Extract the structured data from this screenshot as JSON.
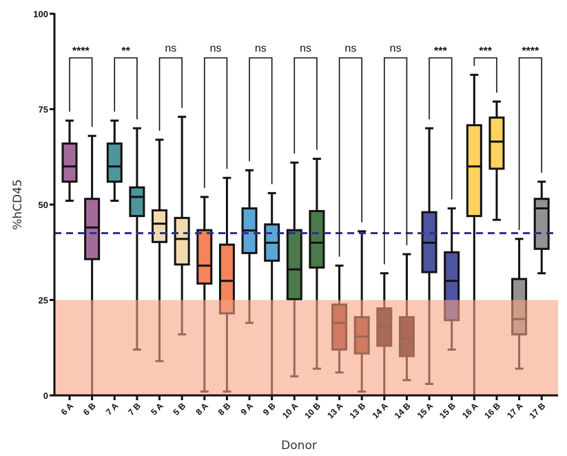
{
  "chart_data": {
    "type": "box",
    "xlabel": "Donor",
    "ylabel": "%hCD45",
    "ylim": [
      0,
      100
    ],
    "yticks": [
      0,
      25,
      50,
      75,
      100
    ],
    "reference_line": {
      "y": 42.5,
      "style": "dashed",
      "color": "#2e3192"
    },
    "shaded_region": {
      "y_from": 0,
      "y_to": 25,
      "color": "#f7a483"
    },
    "categories": [
      "6 A",
      "6 B",
      "7 A",
      "7 B",
      "5 A",
      "5 B",
      "8 A",
      "8 B",
      "9 A",
      "9 B",
      "10 A",
      "10 B",
      "13 A",
      "13 B",
      "14 A",
      "14 B",
      "15 A",
      "15 B",
      "16 A",
      "16 B",
      "17 A",
      "17 B"
    ],
    "boxes": [
      {
        "min": 51,
        "q1": 56,
        "median": 60,
        "q3": 66,
        "max": 72,
        "color": "#a46b9a"
      },
      {
        "min": 0,
        "q1": 35.7,
        "median": 44,
        "q3": 51.5,
        "max": 68,
        "color": "#a46b9a"
      },
      {
        "min": 51,
        "q1": 56,
        "median": 60,
        "q3": 66,
        "max": 72,
        "color": "#4e959e"
      },
      {
        "min": 12,
        "q1": 47,
        "median": 52,
        "q3": 54.5,
        "max": 70,
        "color": "#4e959e"
      },
      {
        "min": 9,
        "q1": 40.2,
        "median": 45,
        "q3": 48.5,
        "max": 67,
        "color": "#f2dab0"
      },
      {
        "min": 16,
        "q1": 34.3,
        "median": 41,
        "q3": 46.5,
        "max": 73,
        "color": "#f2dab0"
      },
      {
        "min": 1,
        "q1": 29.3,
        "median": 34,
        "q3": 43.3,
        "max": 52,
        "color": "#f5845a"
      },
      {
        "min": 1,
        "q1": 21.5,
        "median": 30,
        "q3": 39.5,
        "max": 57,
        "color": "#f5845a"
      },
      {
        "min": 19,
        "q1": 37.3,
        "median": 43.2,
        "q3": 49,
        "max": 59,
        "color": "#5aa6d6"
      },
      {
        "min": 0,
        "q1": 35.3,
        "median": 40,
        "q3": 44.8,
        "max": 53,
        "color": "#5aa6d6"
      },
      {
        "min": 5,
        "q1": 25.2,
        "median": 33,
        "q3": 43.3,
        "max": 61,
        "color": "#4a7a4a"
      },
      {
        "min": 7,
        "q1": 33.5,
        "median": 40,
        "q3": 48.3,
        "max": 62,
        "color": "#4a7a4a"
      },
      {
        "min": 6,
        "q1": 12,
        "median": 19,
        "q3": 23.8,
        "max": 34,
        "color": "#9a3a2e"
      },
      {
        "min": 1,
        "q1": 11,
        "median": 15.4,
        "q3": 20.5,
        "max": 43,
        "color": "#9a3a2e"
      },
      {
        "min": 0,
        "q1": 13,
        "median": 18,
        "q3": 22.8,
        "max": 32,
        "color": "#3a1515"
      },
      {
        "min": 4,
        "q1": 10.3,
        "median": 15,
        "q3": 20.5,
        "max": 37,
        "color": "#3a1515"
      },
      {
        "min": 3,
        "q1": 32.3,
        "median": 40,
        "q3": 48,
        "max": 70,
        "color": "#4e55a0"
      },
      {
        "min": 12,
        "q1": 19.7,
        "median": 30,
        "q3": 37.5,
        "max": 49,
        "color": "#4e55a0"
      },
      {
        "min": 0,
        "q1": 47,
        "median": 60,
        "q3": 70.8,
        "max": 84,
        "color": "#fdd25e"
      },
      {
        "min": 46,
        "q1": 59.4,
        "median": 66.5,
        "q3": 72.8,
        "max": 77,
        "color": "#fdd25e"
      },
      {
        "min": 7,
        "q1": 16,
        "median": 20,
        "q3": 30.5,
        "max": 41,
        "color": "#929292"
      },
      {
        "min": 32,
        "q1": 38.4,
        "median": 49,
        "q3": 51.5,
        "max": 56,
        "color": "#929292"
      }
    ],
    "significance": [
      "****",
      "**",
      "ns",
      "ns",
      "ns",
      "ns",
      "ns",
      "ns",
      "***",
      "***",
      "****"
    ]
  }
}
